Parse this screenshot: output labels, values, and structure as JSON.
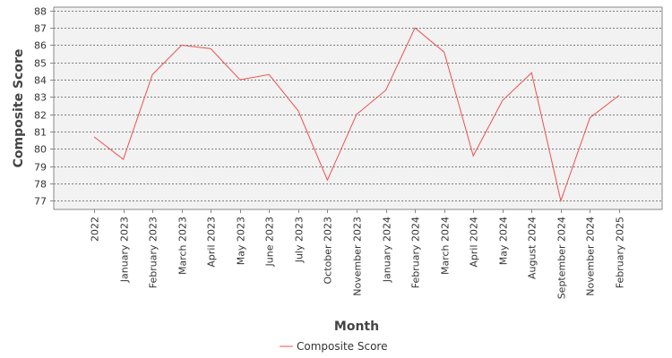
{
  "chart_data": {
    "type": "line",
    "title": "",
    "xlabel": "Month",
    "ylabel": "Composite Score",
    "categories": [
      "2022",
      "January 2023",
      "February 2023",
      "March 2023",
      "April 2023",
      "May 2023",
      "June 2023",
      "July 2023",
      "October 2023",
      "November 2023",
      "January 2024",
      "February 2024",
      "March 2024",
      "April 2024",
      "May 2024",
      "August 2024",
      "September 2024",
      "November 2024",
      "February 2025"
    ],
    "series": [
      {
        "name": "Composite Score",
        "color": "#f05050",
        "values": [
          80.7,
          79.4,
          84.3,
          86.0,
          85.8,
          84.0,
          84.3,
          82.2,
          78.2,
          82.0,
          83.4,
          87.0,
          85.6,
          79.6,
          82.8,
          84.4,
          77.0,
          81.8,
          83.1
        ]
      }
    ],
    "ylim": [
      76.5,
      88.2
    ],
    "yticks": [
      77,
      78,
      79,
      80,
      81,
      82,
      83,
      84,
      85,
      86,
      87,
      88
    ],
    "grid": true,
    "legend": "bottom-center"
  }
}
